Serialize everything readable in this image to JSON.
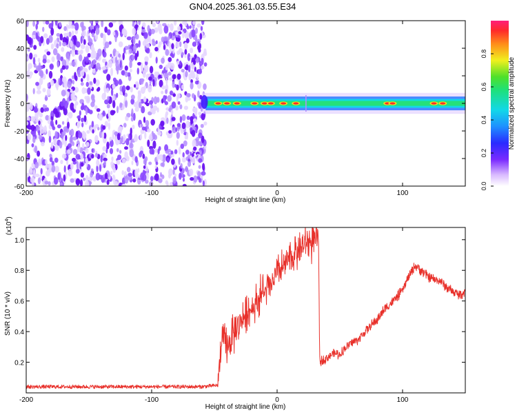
{
  "title": "GN04.2025.361.03.55.E34",
  "colors": {
    "noise": "#7a2bff",
    "band_core": "#ff2a2a",
    "band_mid": "#26e07a",
    "band_edge": "#2f7bff",
    "snr_line": "#e8302a"
  },
  "chart_data": [
    {
      "type": "heatmap",
      "xlabel": "Height of straight line (km)",
      "ylabel": "Frequency (Hz)",
      "xlim": [
        -200,
        150
      ],
      "ylim": [
        -60,
        60
      ],
      "x_ticks": [
        -200,
        -100,
        0,
        100
      ],
      "x_tick_labels": [
        "-200",
        "-100",
        "0",
        "100"
      ],
      "y_ticks": [
        -60,
        -40,
        -20,
        0,
        20,
        40,
        60
      ],
      "y_tick_labels": [
        "-60",
        "-40",
        "-20",
        "0",
        "20",
        "40",
        "60"
      ],
      "colorbar": {
        "label": "Normalized spectral amplitude",
        "range": [
          0,
          1
        ],
        "ticks": [
          0.0,
          0.2,
          0.4,
          0.6,
          0.8
        ],
        "tick_labels": [
          "0.0",
          "0.2",
          "0.4",
          "0.6",
          "0.8"
        ]
      },
      "regions": [
        {
          "x_range": [
            -200,
            -57
          ],
          "freq_range": [
            -60,
            60
          ],
          "description_value": "broadband noise",
          "amplitude_range": [
            0.0,
            0.25
          ]
        },
        {
          "x_range": [
            -57,
            150
          ],
          "center_freq": 0,
          "half_width_hz": 4,
          "peak_amplitude": 1.0
        }
      ],
      "band_hotspots_x": [
        -47,
        -40,
        -32,
        -18,
        -10,
        -5,
        5,
        15,
        88,
        92,
        125,
        132
      ]
    },
    {
      "type": "line",
      "xlabel": "Height of straight line (km)",
      "ylabel": "SNR (10 * v/v)",
      "y_multiplier_label": "(x10",
      "y_multiplier_exp": "4",
      "xlim": [
        -200,
        150
      ],
      "ylim": [
        0,
        1.08
      ],
      "x_ticks": [
        -200,
        -100,
        0,
        100
      ],
      "x_tick_labels": [
        "-200",
        "-100",
        "0",
        "100"
      ],
      "y_ticks": [
        0.2,
        0.4,
        0.6,
        0.8,
        1.0
      ],
      "y_tick_labels": [
        "0.2",
        "0.4",
        "0.6",
        "0.8",
        "1.0"
      ],
      "series": [
        {
          "x": [
            -200,
            -150,
            -100,
            -60,
            -47,
            -46,
            -44,
            -40,
            -35,
            -30,
            -25,
            -20,
            -15,
            -10,
            -5,
            0,
            5,
            10,
            15,
            20,
            25,
            30,
            33,
            34,
            35,
            40,
            45,
            50,
            55,
            60,
            65,
            70,
            75,
            80,
            85,
            90,
            95,
            100,
            105,
            110,
            115,
            120,
            125,
            130,
            135,
            140,
            145,
            150
          ],
          "y": [
            0.04,
            0.04,
            0.04,
            0.04,
            0.05,
            0.18,
            0.35,
            0.3,
            0.38,
            0.45,
            0.52,
            0.55,
            0.62,
            0.66,
            0.7,
            0.78,
            0.82,
            0.88,
            0.92,
            0.95,
            0.98,
            0.99,
            1.0,
            0.2,
            0.21,
            0.23,
            0.26,
            0.25,
            0.3,
            0.33,
            0.35,
            0.4,
            0.44,
            0.48,
            0.54,
            0.58,
            0.62,
            0.67,
            0.76,
            0.83,
            0.8,
            0.76,
            0.74,
            0.73,
            0.69,
            0.66,
            0.64,
            0.66
          ]
        }
      ]
    }
  ]
}
